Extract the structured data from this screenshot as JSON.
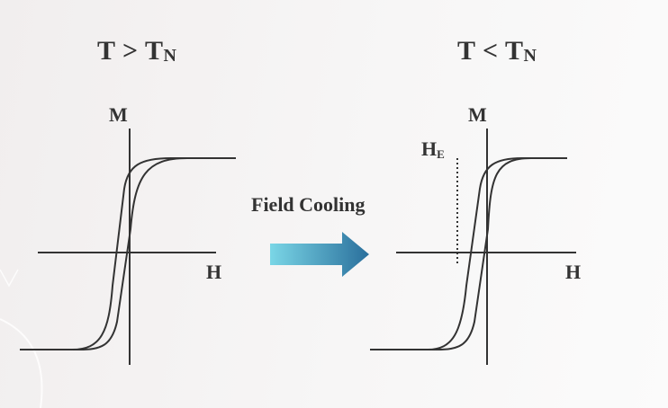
{
  "left_panel": {
    "title_main": "T > T",
    "title_sub": "N",
    "y_axis": "M",
    "x_axis": "H"
  },
  "right_panel": {
    "title_main": "T < T",
    "title_sub": "N",
    "y_axis": "M",
    "x_axis": "H",
    "bias_label_main": "H",
    "bias_label_sub": "E"
  },
  "transition": {
    "label": "Field Cooling",
    "arrow_gradient": [
      "#7ad6e6",
      "#2a6f9c"
    ]
  },
  "colors": {
    "curve": "#333333",
    "text": "#333333",
    "background": "#f4f2f2"
  }
}
